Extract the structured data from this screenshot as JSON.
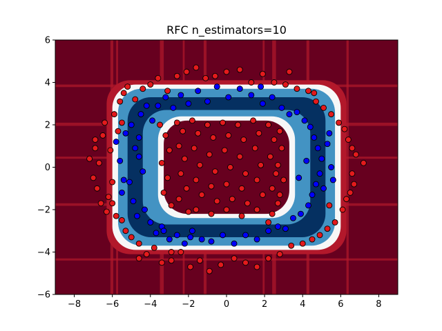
{
  "chart_data": {
    "type": "scatter",
    "title": "RFC n_estimators=10",
    "xlabel": "",
    "ylabel": "",
    "xlim": [
      -9,
      9
    ],
    "ylim": [
      -6,
      6
    ],
    "xticks": [
      -8,
      -6,
      -4,
      -2,
      0,
      2,
      4,
      6,
      8
    ],
    "yticks": [
      -6,
      -4,
      -2,
      0,
      2,
      4,
      6
    ],
    "grid": false,
    "legend": "none",
    "colors": {
      "class_outer": "#e31a1c",
      "class_inner": "#0000ff",
      "bg_outer": "#67001f",
      "bg_mid_red": "#b2182b",
      "bg_pale": "#f7f7f7",
      "bg_mid_blue": "#4393c3",
      "bg_inner": "#053061"
    },
    "series": [
      {
        "class": "outer",
        "points": [
          [
            -7.2,
            0.4
          ],
          [
            -7.0,
            -0.5
          ],
          [
            -6.9,
            0.9
          ],
          [
            -6.8,
            -1.0
          ],
          [
            -6.7,
            0.2
          ],
          [
            -6.6,
            -1.7
          ],
          [
            -6.5,
            1.5
          ],
          [
            -6.4,
            2.1
          ],
          [
            -6.3,
            -2.1
          ],
          [
            -6.2,
            -1.4
          ],
          [
            -6.1,
            0.8
          ],
          [
            -6.0,
            -0.7
          ],
          [
            -5.9,
            2.5
          ],
          [
            -5.8,
            -2.3
          ],
          [
            -5.7,
            1.7
          ],
          [
            -5.6,
            3.1
          ],
          [
            -5.5,
            -2.5
          ],
          [
            -5.4,
            3.5
          ],
          [
            -5.3,
            -3.0
          ],
          [
            -5.2,
            3.8
          ],
          [
            -5.0,
            -3.3
          ],
          [
            -4.8,
            3.2
          ],
          [
            -4.6,
            -3.6
          ],
          [
            -4.4,
            3.7
          ],
          [
            -4.2,
            -4.1
          ],
          [
            -4.0,
            3.9
          ],
          [
            -3.8,
            -3.8
          ],
          [
            -3.6,
            4.2
          ],
          [
            -3.4,
            -4.5
          ],
          [
            -3.1,
            3.6
          ],
          [
            -2.9,
            -4.4
          ],
          [
            -2.6,
            4.3
          ],
          [
            -2.4,
            -4.0
          ],
          [
            -2.1,
            4.5
          ],
          [
            -1.9,
            -4.7
          ],
          [
            -1.6,
            4.7
          ],
          [
            -1.4,
            -4.4
          ],
          [
            -1.1,
            4.2
          ],
          [
            -0.9,
            -4.9
          ],
          [
            -0.6,
            4.3
          ],
          [
            -0.3,
            -4.6
          ],
          [
            0.0,
            4.5
          ],
          [
            0.4,
            -4.3
          ],
          [
            0.7,
            4.6
          ],
          [
            1.0,
            -4.5
          ],
          [
            1.3,
            4.0
          ],
          [
            1.6,
            -4.7
          ],
          [
            1.9,
            4.4
          ],
          [
            2.2,
            -4.3
          ],
          [
            2.5,
            4.0
          ],
          [
            2.8,
            -4.1
          ],
          [
            3.1,
            3.9
          ],
          [
            3.4,
            -3.7
          ],
          [
            3.7,
            3.7
          ],
          [
            4.0,
            -3.6
          ],
          [
            4.3,
            3.6
          ],
          [
            4.5,
            -3.4
          ],
          [
            4.7,
            3.1
          ],
          [
            4.9,
            -3.2
          ],
          [
            5.1,
            2.8
          ],
          [
            5.3,
            -2.9
          ],
          [
            5.5,
            2.5
          ],
          [
            5.7,
            -2.6
          ],
          [
            5.9,
            2.1
          ],
          [
            6.1,
            -2.0
          ],
          [
            6.2,
            1.8
          ],
          [
            6.3,
            -1.5
          ],
          [
            6.4,
            1.3
          ],
          [
            6.5,
            -1.2
          ],
          [
            6.6,
            0.9
          ],
          [
            6.7,
            -0.8
          ],
          [
            6.8,
            0.6
          ],
          [
            7.2,
            0.2
          ],
          [
            6.6,
            -0.3
          ],
          [
            -6.9,
            1.3
          ],
          [
            -6.0,
            -1.7
          ],
          [
            -5.5,
            2.1
          ],
          [
            5.4,
            -1.8
          ],
          [
            -4.6,
            -4.3
          ],
          [
            4.6,
            3.5
          ],
          [
            3.3,
            4.5
          ],
          [
            -2.9,
            -4.0
          ],
          [
            -3.5,
            2.0
          ],
          [
            -3.2,
            1.5
          ],
          [
            -3.0,
            0.8
          ],
          [
            -3.4,
            0.2
          ],
          [
            -3.1,
            -0.5
          ],
          [
            -3.3,
            -1.2
          ],
          [
            -2.9,
            -1.8
          ],
          [
            -2.6,
            2.1
          ],
          [
            -2.3,
            1.7
          ],
          [
            -2.5,
            1.0
          ],
          [
            -2.2,
            0.4
          ],
          [
            -2.4,
            -0.3
          ],
          [
            -2.1,
            -1.0
          ],
          [
            -2.5,
            -1.5
          ],
          [
            -2.0,
            -2.1
          ],
          [
            -1.8,
            2.2
          ],
          [
            -1.5,
            1.6
          ],
          [
            -1.7,
            0.9
          ],
          [
            -1.4,
            0.1
          ],
          [
            -1.6,
            -0.6
          ],
          [
            -1.3,
            -1.3
          ],
          [
            -1.6,
            -2.0
          ],
          [
            -1.0,
            2.0
          ],
          [
            -0.7,
            1.4
          ],
          [
            -0.9,
            0.6
          ],
          [
            -0.6,
            -0.2
          ],
          [
            -0.8,
            -0.9
          ],
          [
            -0.5,
            -1.6
          ],
          [
            -0.8,
            -2.2
          ],
          [
            -0.2,
            2.1
          ],
          [
            0.1,
            1.5
          ],
          [
            -0.1,
            0.8
          ],
          [
            0.2,
            0.0
          ],
          [
            0.0,
            -0.8
          ],
          [
            0.3,
            -1.5
          ],
          [
            0.0,
            -2.0
          ],
          [
            0.6,
            2.0
          ],
          [
            0.9,
            1.3
          ],
          [
            0.7,
            0.5
          ],
          [
            1.0,
            -0.3
          ],
          [
            0.8,
            -1.0
          ],
          [
            1.1,
            -1.7
          ],
          [
            0.8,
            -2.3
          ],
          [
            1.4,
            2.2
          ],
          [
            1.7,
            1.6
          ],
          [
            1.5,
            0.9
          ],
          [
            1.8,
            0.1
          ],
          [
            1.6,
            -0.6
          ],
          [
            1.9,
            -1.3
          ],
          [
            1.6,
            -2.0
          ],
          [
            2.2,
            2.0
          ],
          [
            2.5,
            1.3
          ],
          [
            2.3,
            0.5
          ],
          [
            2.6,
            -0.3
          ],
          [
            2.4,
            -1.0
          ],
          [
            2.7,
            -1.7
          ],
          [
            2.4,
            -2.2
          ],
          [
            2.8,
            1.7
          ],
          [
            2.9,
            0.9
          ],
          [
            2.7,
            0.1
          ],
          [
            3.0,
            -0.6
          ],
          [
            2.8,
            -1.3
          ],
          [
            2.2,
            -2.6
          ]
        ]
      },
      {
        "class": "inner",
        "points": [
          [
            -5.8,
            1.2
          ],
          [
            -5.6,
            0.3
          ],
          [
            -5.4,
            -0.6
          ],
          [
            -5.5,
            -1.2
          ],
          [
            -5.3,
            1.6
          ],
          [
            -5.1,
            -0.7
          ],
          [
            -5.0,
            2.0
          ],
          [
            -4.9,
            -1.6
          ],
          [
            -4.8,
            0.9
          ],
          [
            -4.7,
            -2.3
          ],
          [
            -4.6,
            1.4
          ],
          [
            -4.5,
            2.5
          ],
          [
            -4.3,
            -2.0
          ],
          [
            -4.2,
            2.9
          ],
          [
            -4.0,
            -2.6
          ],
          [
            -3.9,
            2.2
          ],
          [
            -3.7,
            -3.1
          ],
          [
            -3.6,
            2.9
          ],
          [
            -3.4,
            -2.8
          ],
          [
            -3.2,
            3.3
          ],
          [
            -3.0,
            -3.4
          ],
          [
            -2.8,
            2.8
          ],
          [
            -2.6,
            -3.2
          ],
          [
            -2.4,
            3.4
          ],
          [
            -2.2,
            -3.6
          ],
          [
            -2.0,
            3.0
          ],
          [
            -1.8,
            -3.0
          ],
          [
            -1.5,
            3.6
          ],
          [
            -1.3,
            -3.4
          ],
          [
            -1.0,
            3.1
          ],
          [
            -0.8,
            -3.5
          ],
          [
            -0.5,
            3.8
          ],
          [
            -0.2,
            -3.2
          ],
          [
            0.1,
            3.3
          ],
          [
            0.4,
            -3.6
          ],
          [
            0.7,
            3.7
          ],
          [
            1.0,
            -3.2
          ],
          [
            1.3,
            3.4
          ],
          [
            1.6,
            -3.4
          ],
          [
            1.9,
            3.0
          ],
          [
            2.2,
            -3.0
          ],
          [
            2.4,
            3.3
          ],
          [
            2.7,
            -2.8
          ],
          [
            2.9,
            2.8
          ],
          [
            3.1,
            -2.9
          ],
          [
            3.3,
            2.5
          ],
          [
            3.5,
            -2.4
          ],
          [
            3.7,
            2.6
          ],
          [
            3.9,
            -2.2
          ],
          [
            4.1,
            2.2
          ],
          [
            4.3,
            -1.8
          ],
          [
            4.4,
            1.9
          ],
          [
            4.5,
            -1.3
          ],
          [
            4.6,
            1.4
          ],
          [
            4.7,
            -0.8
          ],
          [
            4.8,
            0.9
          ],
          [
            4.9,
            -0.3
          ],
          [
            5.0,
            0.4
          ],
          [
            5.1,
            -1.0
          ],
          [
            5.3,
            1.1
          ],
          [
            5.5,
            0.0
          ],
          [
            5.6,
            -0.6
          ],
          [
            5.4,
            1.6
          ],
          [
            -4.4,
            -0.2
          ],
          [
            -4.6,
            0.5
          ],
          [
            3.8,
            -0.5
          ],
          [
            4.2,
            0.3
          ],
          [
            -1.9,
            -3.3
          ],
          [
            1.8,
            3.8
          ],
          [
            -3.3,
            -3.0
          ]
        ]
      }
    ]
  }
}
